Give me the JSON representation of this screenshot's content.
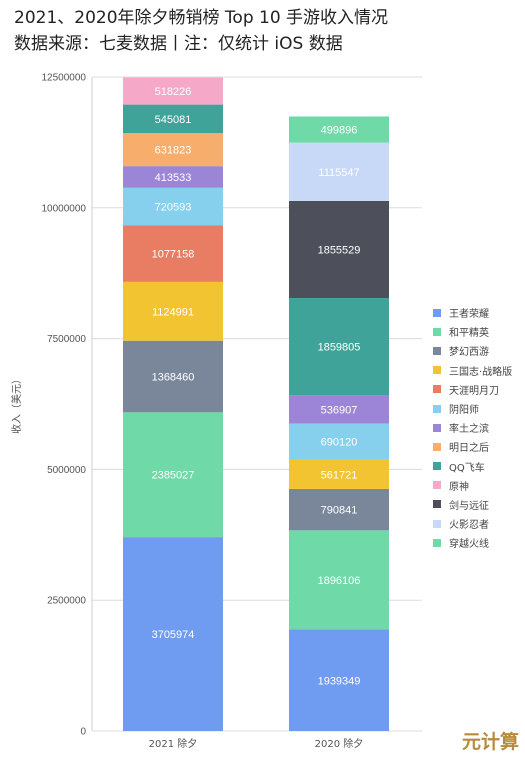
{
  "titles": {
    "line1": "2021、2020年除夕畅销榜 Top 10 手游收入情况",
    "line2": "数据来源：七麦数据丨注：仅统计 iOS 数据"
  },
  "watermark": "元计算",
  "chart_data": {
    "type": "bar",
    "stacked": true,
    "categories": [
      "2021 除夕",
      "2020 除夕"
    ],
    "ylabel": "收入（美元）",
    "ylim": [
      0,
      12500000
    ],
    "yticks": [
      0,
      2500000,
      5000000,
      7500000,
      10000000,
      12500000
    ],
    "grid": true,
    "legend_position": "right",
    "series": [
      {
        "name": "王者荣耀",
        "color": "#6f9cf0",
        "values": [
          3705974,
          1939349
        ]
      },
      {
        "name": "和平精英",
        "color": "#6fd9a8",
        "values": [
          2385027,
          1896106
        ]
      },
      {
        "name": "梦幻西游",
        "color": "#7a879b",
        "values": [
          1368460,
          790841
        ]
      },
      {
        "name": "三国志·战略版",
        "color": "#f3c432",
        "values": [
          1124991,
          561721
        ]
      },
      {
        "name": "天涯明月刀",
        "color": "#e87d63",
        "values": [
          1077158,
          null
        ]
      },
      {
        "name": "阴阳师",
        "color": "#86d0ee",
        "values": [
          720593,
          690120
        ]
      },
      {
        "name": "率土之滨",
        "color": "#9c85d6",
        "values": [
          413533,
          536907
        ]
      },
      {
        "name": "明日之后",
        "color": "#f7ad6b",
        "values": [
          631823,
          null
        ]
      },
      {
        "name": "QQ飞车",
        "color": "#3fa39a",
        "values": [
          545081,
          1859805
        ]
      },
      {
        "name": "原神",
        "color": "#f6a8c8",
        "values": [
          518226,
          null
        ]
      },
      {
        "name": "剑与远征",
        "color": "#4d505a",
        "values": [
          null,
          1855529
        ]
      },
      {
        "name": "火影忍者",
        "color": "#c8d9f7",
        "values": [
          null,
          1115547
        ]
      },
      {
        "name": "穿越火线",
        "color": "#6fd9a8",
        "values": [
          null,
          499896
        ]
      }
    ]
  }
}
